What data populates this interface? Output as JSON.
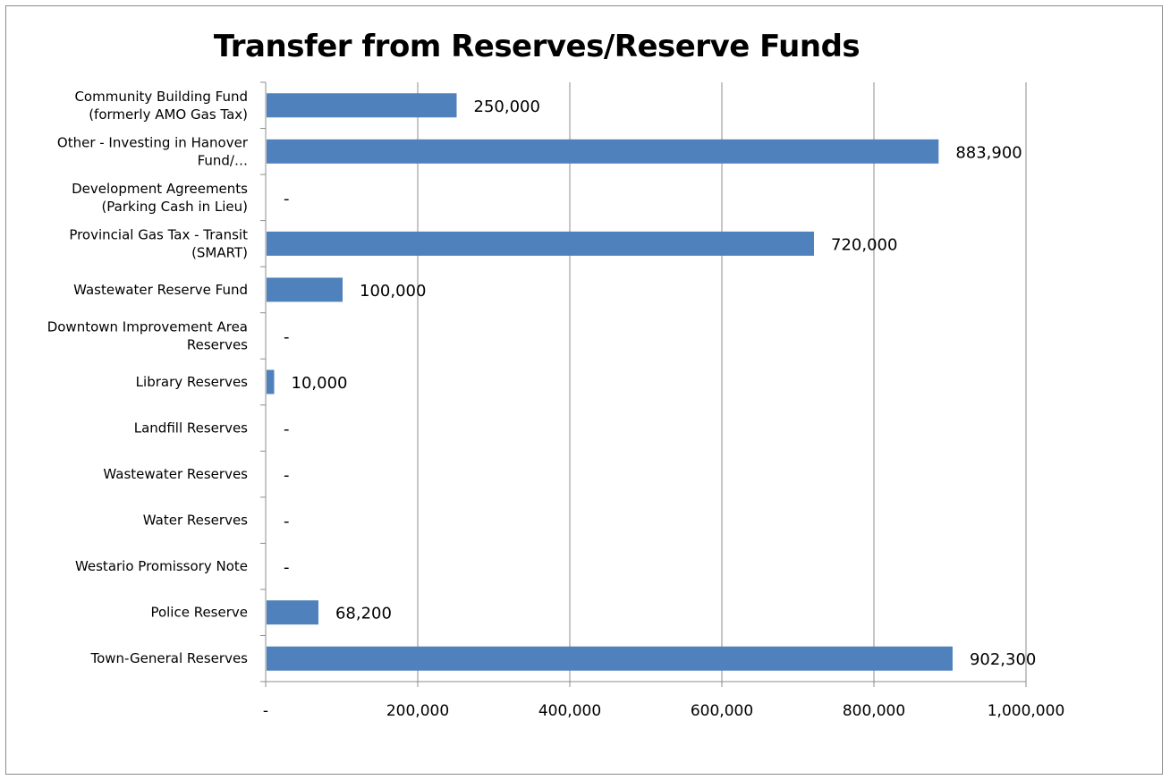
{
  "chart_data": {
    "type": "bar",
    "orientation": "horizontal",
    "title": "Transfer from Reserves/Reserve Funds",
    "categories": [
      [
        "Community Building Fund",
        "(formerly AMO Gas Tax)"
      ],
      [
        "Other - Investing in Hanover",
        "Fund/…"
      ],
      [
        "Development Agreements",
        "(Parking Cash in Lieu)"
      ],
      [
        "Provincial Gas Tax - Transit",
        "(SMART)"
      ],
      [
        "Wastewater Reserve Fund"
      ],
      [
        "Downtown Improvement Area",
        "Reserves"
      ],
      [
        "Library Reserves"
      ],
      [
        "Landfill Reserves"
      ],
      [
        "Wastewater Reserves"
      ],
      [
        "Water Reserves"
      ],
      [
        "Westario Promissory Note"
      ],
      [
        "Police Reserve"
      ],
      [
        "Town-General Reserves"
      ]
    ],
    "values": [
      250000,
      883900,
      0,
      720000,
      100000,
      0,
      10000,
      0,
      0,
      0,
      0,
      68200,
      902300
    ],
    "data_labels": [
      "250,000",
      "883,900",
      "-",
      "720,000",
      "100,000",
      "-",
      "10,000",
      "-",
      "-",
      "-",
      "-",
      "68,200",
      "902,300"
    ],
    "xlim": [
      0,
      1000000
    ],
    "x_ticks": [
      0,
      200000,
      400000,
      600000,
      800000,
      1000000
    ],
    "x_tick_labels": [
      "-",
      "200,000",
      "400,000",
      "600,000",
      "800,000",
      "1,000,000"
    ],
    "grid": "vertical",
    "bar_color": "#4f81bd",
    "legend": "none"
  }
}
